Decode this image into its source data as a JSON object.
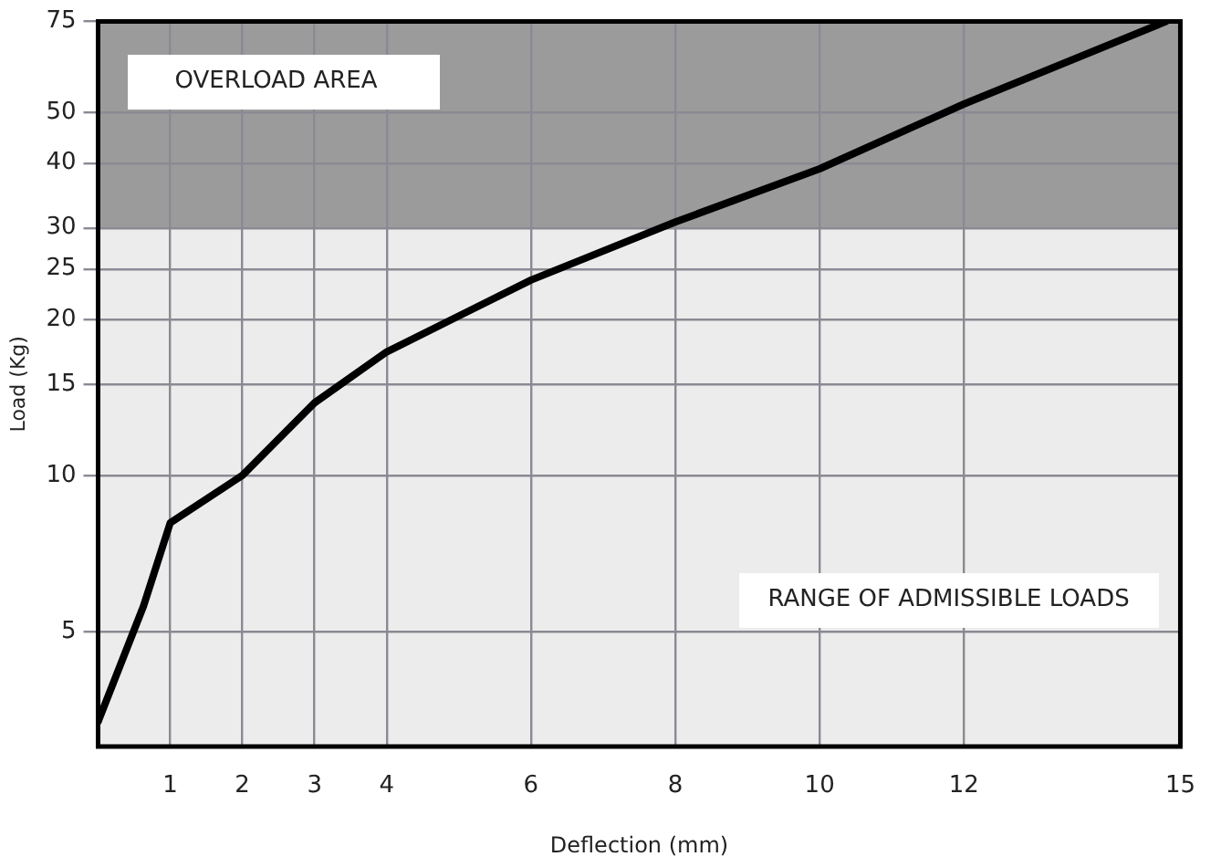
{
  "chart_data": {
    "type": "line",
    "xlabel": "Deflection (mm)",
    "ylabel": "Load (Kg)",
    "x": [
      0,
      0.63,
      1,
      2,
      3,
      4,
      6,
      8,
      10,
      12,
      14.8
    ],
    "series": [
      {
        "color": "#000000",
        "values": [
          3.35,
          5.6,
          8.1,
          10,
          13.8,
          17.3,
          23.8,
          30.8,
          39,
          52,
          75
        ]
      }
    ],
    "xlim": [
      0,
      15
    ],
    "xticks": [
      1,
      2,
      3,
      4,
      6,
      8,
      10,
      12,
      15
    ],
    "ylim": [
      3,
      75
    ],
    "yticks": [
      5,
      10,
      15,
      20,
      25,
      30,
      40,
      50,
      75
    ],
    "log": "y",
    "grid": true,
    "legend": false,
    "marker": "none",
    "line_style": "solid",
    "bands": [
      {
        "axis": "y",
        "from": 30,
        "to": 75,
        "label": "OVERLOAD AREA",
        "color": "#9b9b9b"
      },
      {
        "axis": "y",
        "from": 3,
        "to": 30,
        "label": "RANGE OF ADMISSIBLE LOADS",
        "color": "#ececec"
      }
    ]
  }
}
